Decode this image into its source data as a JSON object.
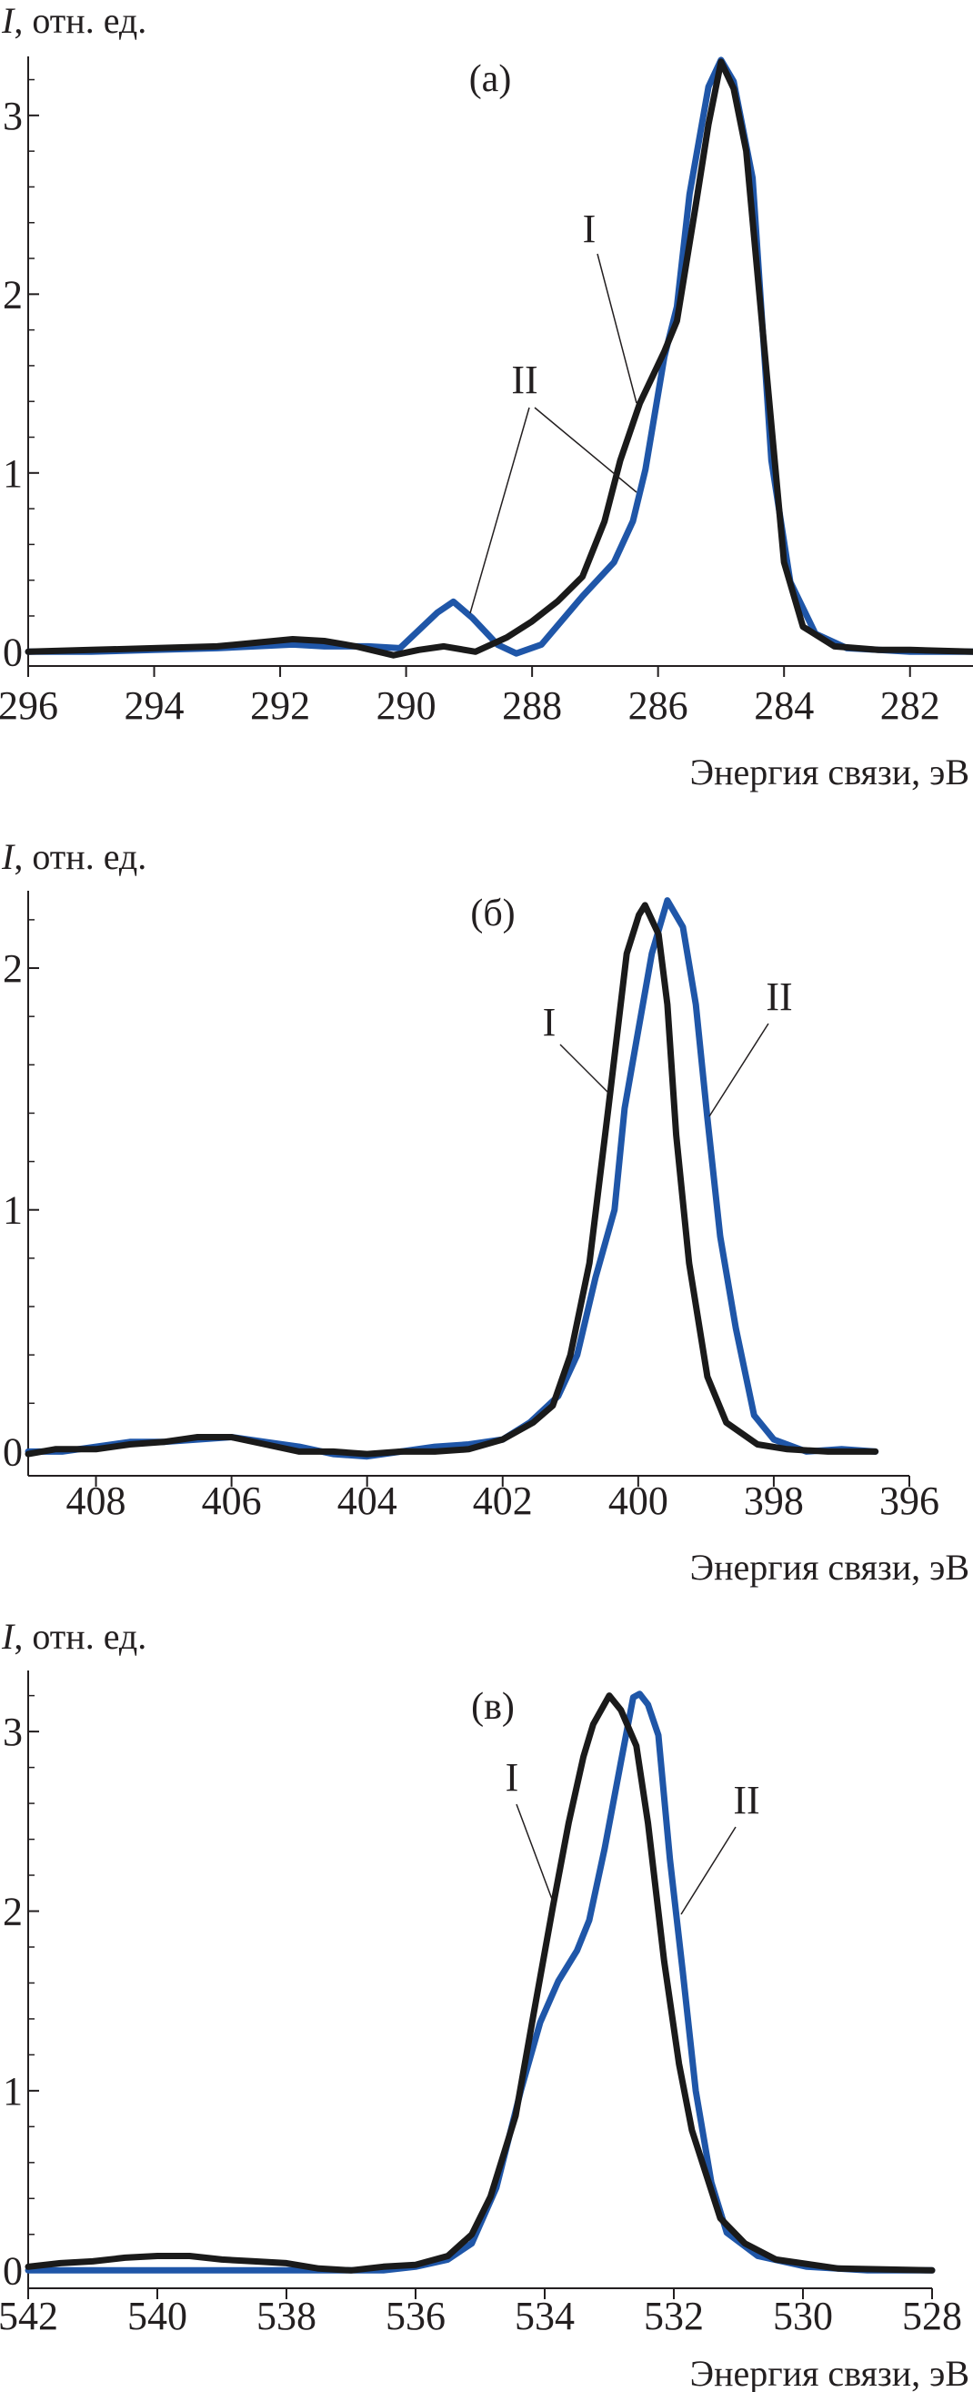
{
  "colors": {
    "I": "#1a1a1a",
    "II": "#1f56a8"
  },
  "chart_data": [
    {
      "type": "line",
      "panel_label": "(а)",
      "ylabel_symbol": "I",
      "ylabel": ", отн. ед.",
      "xlabel": "Энергия связи, эВ",
      "xlim": [
        296,
        281
      ],
      "ylim": [
        -0.08,
        3.33
      ],
      "x_reversed": true,
      "xticks": [
        296,
        294,
        292,
        290,
        288,
        286,
        284,
        282
      ],
      "yticks": [
        0,
        1,
        2,
        3
      ],
      "y_minor_step": 0.2,
      "grid": false,
      "series": [
        {
          "name": "I",
          "color": "#1a1a1a",
          "x": [
            296,
            295,
            294,
            293,
            292.4,
            291.8,
            291.3,
            290.8,
            290.2,
            289.8,
            289.4,
            288.9,
            288.4,
            288.0,
            287.6,
            287.2,
            286.85,
            286.6,
            286.29,
            285.9,
            285.7,
            285.4,
            285.2,
            285.0,
            284.8,
            284.6,
            284.3,
            284.0,
            283.7,
            283.2,
            282.5,
            282,
            281
          ],
          "y": [
            0,
            0.01,
            0.02,
            0.03,
            0.05,
            0.07,
            0.06,
            0.03,
            -0.02,
            0.01,
            0.03,
            0.0,
            0.08,
            0.17,
            0.28,
            0.42,
            0.73,
            1.07,
            1.39,
            1.68,
            1.85,
            2.5,
            2.95,
            3.3,
            3.15,
            2.8,
            1.65,
            0.5,
            0.14,
            0.03,
            0.01,
            0.01,
            0.0
          ]
        },
        {
          "name": "II",
          "color": "#1f56a8",
          "x": [
            296,
            295,
            294,
            293,
            292.4,
            291.8,
            291.3,
            290.6,
            290.1,
            289.5,
            289.25,
            288.95,
            288.55,
            288.25,
            287.85,
            287.2,
            286.7,
            286.4,
            286.2,
            285.9,
            285.7,
            285.5,
            285.2,
            285.0,
            284.8,
            284.5,
            284.2,
            283.9,
            283.5,
            283.0,
            282.5,
            282,
            281
          ],
          "y": [
            0,
            0,
            0.01,
            0.02,
            0.03,
            0.04,
            0.03,
            0.03,
            0.02,
            0.22,
            0.28,
            0.19,
            0.04,
            -0.01,
            0.04,
            0.31,
            0.5,
            0.73,
            1.02,
            1.65,
            1.93,
            2.56,
            3.16,
            3.31,
            3.19,
            2.65,
            1.07,
            0.39,
            0.1,
            0.02,
            0.01,
            0.0,
            0.0
          ]
        }
      ]
    },
    {
      "type": "line",
      "panel_label": "(б)",
      "ylabel_symbol": "I",
      "ylabel": ", отн. ед.",
      "xlabel": "Энергия связи, эВ",
      "xlim": [
        409,
        396
      ],
      "ylim": [
        -0.1,
        2.32
      ],
      "x_reversed": true,
      "xticks": [
        408,
        406,
        404,
        402,
        400,
        398,
        396
      ],
      "yticks": [
        0,
        1,
        2
      ],
      "y_minor_step": 0.2,
      "grid": false,
      "series": [
        {
          "name": "I",
          "color": "#1a1a1a",
          "x": [
            409,
            408.6,
            408,
            407.5,
            407,
            406.5,
            406,
            405.5,
            405,
            404.5,
            404,
            403.5,
            403,
            402.5,
            402,
            401.55,
            401.26,
            401.0,
            400.72,
            400.44,
            400.17,
            399.99,
            399.9,
            399.7,
            399.57,
            399.44,
            399.25,
            398.98,
            398.7,
            398.24,
            397.8,
            397.2,
            396.5
          ],
          "y": [
            -0.01,
            0.01,
            0.01,
            0.03,
            0.04,
            0.06,
            0.06,
            0.03,
            0.0,
            0.0,
            -0.01,
            0.0,
            0.0,
            0.01,
            0.05,
            0.12,
            0.19,
            0.4,
            0.78,
            1.42,
            2.06,
            2.22,
            2.26,
            2.14,
            1.85,
            1.31,
            0.78,
            0.31,
            0.12,
            0.03,
            0.01,
            0.0,
            0.0
          ]
        },
        {
          "name": "II",
          "color": "#1f56a8",
          "x": [
            409,
            408.5,
            408,
            407.5,
            407,
            406.5,
            406,
            405.5,
            405,
            404.5,
            404,
            403.5,
            403,
            402.5,
            402,
            401.6,
            401.18,
            400.9,
            400.63,
            400.35,
            400.2,
            400.0,
            399.8,
            399.57,
            399.34,
            399.15,
            398.98,
            398.79,
            398.56,
            398.29,
            398.0,
            397.52,
            397.0,
            396.5
          ],
          "y": [
            0.0,
            0.0,
            0.02,
            0.04,
            0.04,
            0.05,
            0.06,
            0.04,
            0.02,
            -0.01,
            -0.02,
            0.0,
            0.02,
            0.03,
            0.05,
            0.12,
            0.23,
            0.4,
            0.72,
            1.0,
            1.42,
            1.74,
            2.06,
            2.28,
            2.17,
            1.85,
            1.38,
            0.89,
            0.51,
            0.15,
            0.05,
            0.0,
            0.01,
            0.0
          ]
        }
      ]
    },
    {
      "type": "line",
      "panel_label": "(в)",
      "ylabel_symbol": "I",
      "ylabel": ", отн. ед.",
      "xlabel": "Энергия связи, эВ",
      "xlim": [
        542,
        528
      ],
      "ylim": [
        -0.1,
        3.34
      ],
      "x_reversed": true,
      "xticks": [
        542,
        540,
        538,
        536,
        534,
        532,
        530,
        528
      ],
      "yticks": [
        0,
        1,
        2,
        3
      ],
      "y_minor_step": 0.2,
      "grid": false,
      "series": [
        {
          "name": "I",
          "color": "#1a1a1a",
          "x": [
            542,
            541.5,
            541,
            540.5,
            540,
            539.5,
            539,
            538.5,
            538,
            537.5,
            537,
            536.5,
            536,
            535.5,
            535.13,
            534.84,
            534.45,
            534.17,
            533.87,
            533.63,
            533.4,
            533.25,
            533.0,
            532.82,
            532.58,
            532.4,
            532.15,
            531.92,
            531.72,
            531.28,
            530.9,
            530.42,
            529.45,
            528
          ],
          "y": [
            0.02,
            0.04,
            0.05,
            0.07,
            0.08,
            0.08,
            0.06,
            0.05,
            0.04,
            0.01,
            0.0,
            0.02,
            0.03,
            0.08,
            0.2,
            0.41,
            0.86,
            1.43,
            2.03,
            2.49,
            2.86,
            3.04,
            3.2,
            3.12,
            2.92,
            2.49,
            1.72,
            1.15,
            0.78,
            0.29,
            0.15,
            0.06,
            0.01,
            0.0
          ]
        },
        {
          "name": "II",
          "color": "#1f56a8",
          "x": [
            542,
            540,
            538,
            537,
            536.5,
            536,
            535.5,
            535.13,
            534.75,
            534.37,
            534.07,
            533.79,
            533.5,
            533.31,
            533.07,
            532.82,
            532.63,
            532.53,
            532.4,
            532.24,
            532.06,
            531.86,
            531.66,
            531.42,
            531.18,
            530.7,
            529.94,
            529,
            528
          ],
          "y": [
            0,
            0,
            0,
            0,
            0.0,
            0.02,
            0.06,
            0.15,
            0.46,
            1.0,
            1.38,
            1.61,
            1.78,
            1.95,
            2.35,
            2.83,
            3.19,
            3.21,
            3.15,
            2.98,
            2.29,
            1.66,
            1.0,
            0.49,
            0.21,
            0.08,
            0.02,
            0.0,
            0.0
          ]
        }
      ]
    }
  ]
}
